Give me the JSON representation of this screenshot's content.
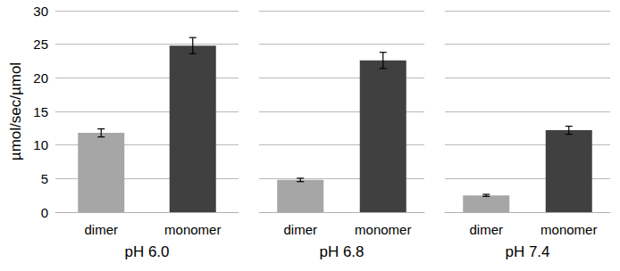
{
  "chart_data": [
    {
      "type": "bar",
      "ylabel": "µmol/sec/µmol",
      "xlabel": "pH 6.0",
      "categories": [
        "dimer",
        "monomer"
      ],
      "values": [
        11.8,
        24.8
      ],
      "error": [
        0.6,
        1.2
      ],
      "colors": [
        "#a6a6a6",
        "#404040"
      ],
      "ylim": [
        0,
        30
      ],
      "yticks": [
        0,
        5,
        10,
        15,
        20,
        25,
        30
      ],
      "grid": true
    },
    {
      "type": "bar",
      "xlabel": "pH 6.8",
      "categories": [
        "dimer",
        "monomer"
      ],
      "values": [
        4.8,
        22.6
      ],
      "error": [
        0.25,
        1.2
      ],
      "colors": [
        "#a6a6a6",
        "#404040"
      ],
      "ylim": [
        0,
        30
      ],
      "yticks": [
        0,
        5,
        10,
        15,
        20,
        25,
        30
      ],
      "grid": true,
      "tick_labels": "x"
    },
    {
      "type": "bar",
      "xlabel": "pH 7.4",
      "categories": [
        "dimer",
        "monomer"
      ],
      "values": [
        2.5,
        12.2
      ],
      "error": [
        0.15,
        0.6
      ],
      "colors": [
        "#a6a6a6",
        "#404040"
      ],
      "ylim": [
        0,
        30
      ],
      "yticks": [
        0,
        5,
        10,
        15,
        20,
        25,
        30
      ],
      "grid": true,
      "tick_labels": "x"
    }
  ]
}
